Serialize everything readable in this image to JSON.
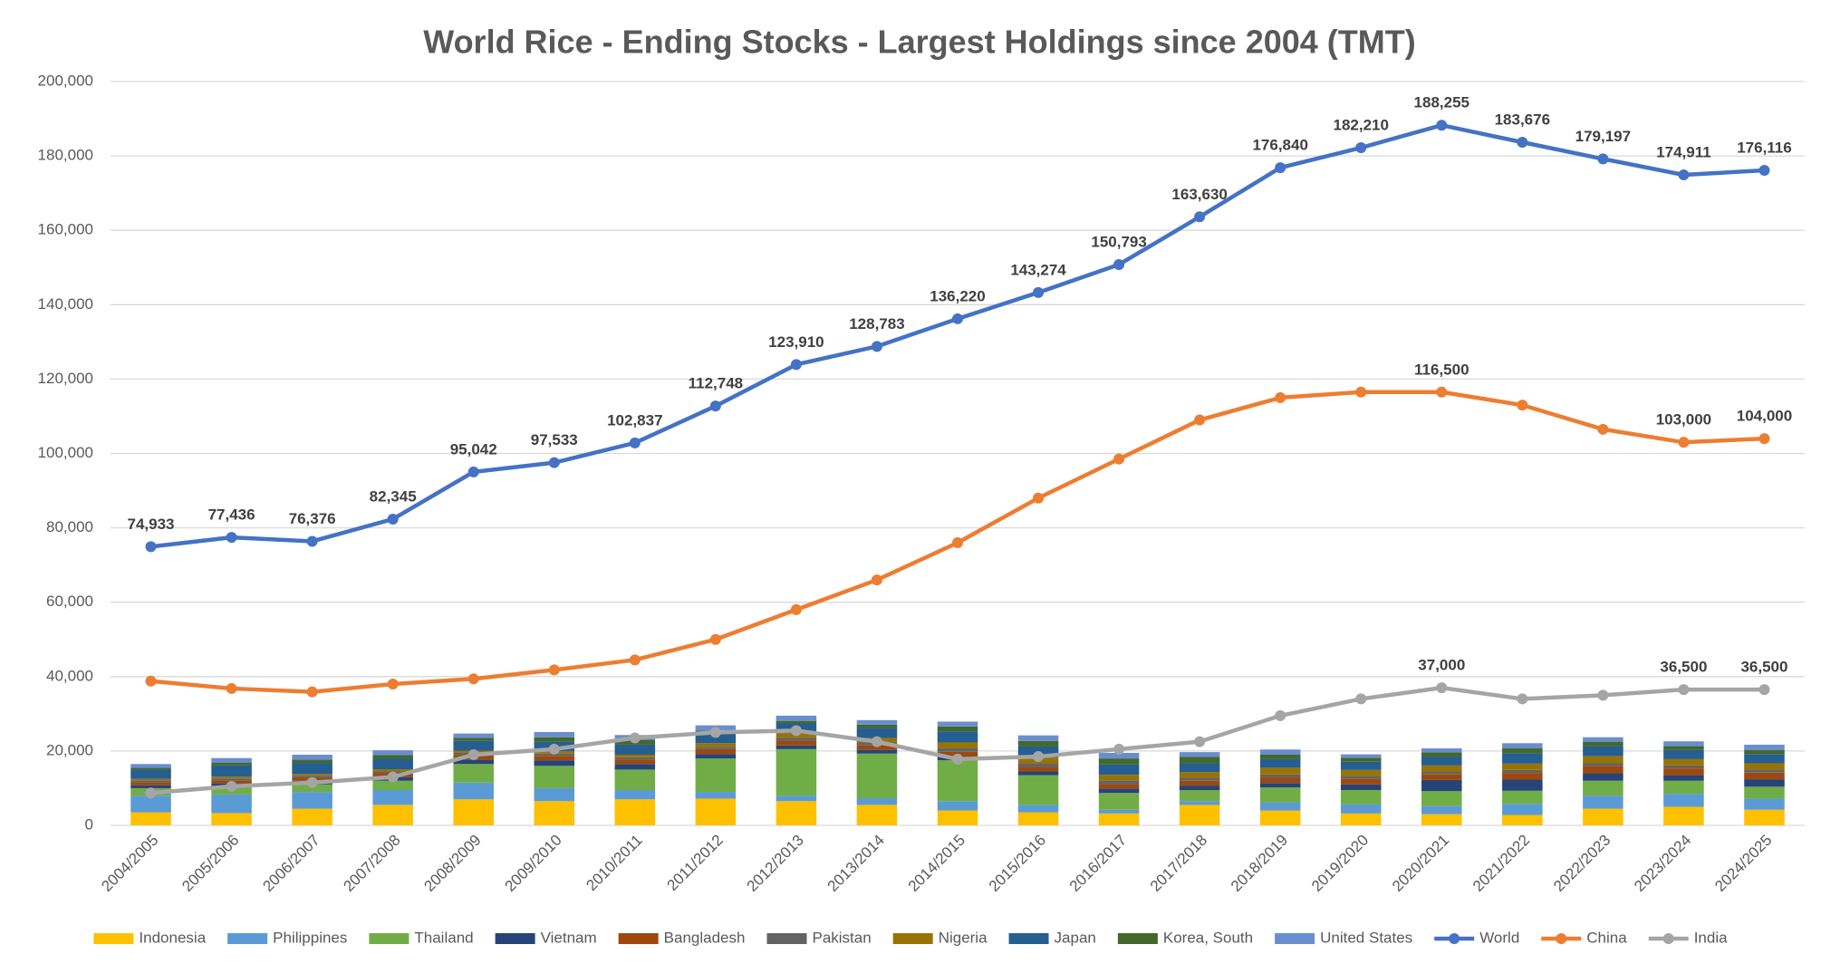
{
  "chart_data": {
    "type": "combo",
    "title": "World Rice - Ending Stocks - Largest Holdings since 2004 (TMT)",
    "categories": [
      "2004/2005",
      "2005/2006",
      "2006/2007",
      "2007/2008",
      "2008/2009",
      "2009/2010",
      "2010/2011",
      "2011/2012",
      "2012/2013",
      "2013/2014",
      "2014/2015",
      "2015/2016",
      "2016/2017",
      "2017/2018",
      "2018/2019",
      "2019/2020",
      "2020/2021",
      "2021/2022",
      "2022/2023",
      "2023/2024",
      "2024/2025"
    ],
    "ylim": [
      0,
      200000
    ],
    "yticks": [
      0,
      {
        "value": 20000,
        "label": "20,000"
      },
      {
        "value": 40000,
        "label": "40,000"
      },
      {
        "value": 60000,
        "label": "60,000"
      },
      {
        "value": 80000,
        "label": "80,000"
      },
      {
        "value": 100000,
        "label": "100,000"
      },
      {
        "value": 120000,
        "label": "120,000"
      },
      {
        "value": 140000,
        "label": "140,000"
      },
      {
        "value": 160000,
        "label": "160,000"
      },
      {
        "value": 180000,
        "label": "180,000"
      },
      {
        "value": 200000,
        "label": "200,000"
      }
    ],
    "grid": true,
    "legend": "bottom",
    "series": [
      {
        "name": "Indonesia",
        "type": "bar",
        "color": "#ffc000",
        "values": [
          3500,
          3300,
          4500,
          5500,
          7000,
          6500,
          7000,
          7200,
          6500,
          5500,
          4000,
          3500,
          3200,
          5500,
          4000,
          3200,
          3000,
          2800,
          4500,
          5000,
          4200
        ]
      },
      {
        "name": "Philippines",
        "type": "bar",
        "color": "#5b9bd5",
        "values": [
          4500,
          5000,
          4500,
          4000,
          4500,
          3500,
          2500,
          1800,
          1500,
          1800,
          2500,
          2000,
          1000,
          1000,
          2200,
          2500,
          2200,
          3000,
          3500,
          3500,
          3000
        ]
      },
      {
        "name": "Thailand",
        "type": "bar",
        "color": "#70ad47",
        "values": [
          2000,
          2000,
          2000,
          2500,
          5000,
          6000,
          5500,
          9000,
          12500,
          12000,
          11000,
          8000,
          4500,
          3000,
          4000,
          3800,
          4000,
          3500,
          4000,
          3500,
          3200
        ]
      },
      {
        "name": "Vietnam",
        "type": "bar",
        "color": "#264478",
        "values": [
          800,
          1000,
          1000,
          1000,
          1200,
          1500,
          1500,
          1200,
          1000,
          1000,
          1000,
          1000,
          1200,
          1200,
          1200,
          1500,
          3000,
          3000,
          2000,
          1500,
          2000
        ]
      },
      {
        "name": "Bangladesh",
        "type": "bar",
        "color": "#9e480e",
        "values": [
          800,
          800,
          800,
          1000,
          1200,
          1200,
          1200,
          1300,
          1300,
          1200,
          1300,
          1200,
          1200,
          1300,
          1500,
          1500,
          1500,
          1800,
          2000,
          1800,
          1800
        ]
      },
      {
        "name": "Pakistan",
        "type": "bar",
        "color": "#636363",
        "values": [
          500,
          500,
          500,
          500,
          600,
          600,
          600,
          600,
          800,
          800,
          1000,
          1000,
          1000,
          800,
          800,
          800,
          800,
          800,
          800,
          800,
          800
        ]
      },
      {
        "name": "Nigeria",
        "type": "bar",
        "color": "#997300",
        "values": [
          400,
          500,
          500,
          600,
          600,
          600,
          700,
          1000,
          1200,
          1200,
          1500,
          1500,
          1500,
          1500,
          1800,
          1600,
          1600,
          1700,
          1800,
          1700,
          1700
        ]
      },
      {
        "name": "Japan",
        "type": "bar",
        "color": "#255e91",
        "values": [
          2500,
          3000,
          3000,
          2800,
          2600,
          2600,
          2700,
          2600,
          2600,
          2700,
          3000,
          3000,
          2800,
          2400,
          2300,
          2200,
          2300,
          2800,
          2700,
          2500,
          2500
        ]
      },
      {
        "name": "Korea, South",
        "type": "bar",
        "color": "#43682b",
        "values": [
          500,
          800,
          900,
          1000,
          800,
          1200,
          1300,
          800,
          700,
          900,
          1300,
          1500,
          1600,
          1700,
          1200,
          1100,
          1200,
          1300,
          1200,
          1000,
          1100
        ]
      },
      {
        "name": "United States",
        "type": "bar",
        "color": "#698ed0",
        "values": [
          1000,
          1200,
          1300,
          1300,
          1200,
          1400,
          1300,
          1400,
          1400,
          1200,
          1300,
          1500,
          1500,
          1300,
          1400,
          900,
          1100,
          1400,
          1200,
          1300,
          1400
        ]
      },
      {
        "name": "World",
        "type": "line",
        "color": "#4472c4",
        "values": [
          74933,
          77436,
          76376,
          82345,
          95042,
          97533,
          102837,
          112748,
          123910,
          128783,
          136220,
          143274,
          150793,
          163630,
          176840,
          182210,
          188255,
          183676,
          179197,
          174911,
          176116
        ],
        "value_labels": [
          "74,933",
          "77,436",
          "76,376",
          "82,345",
          "95,042",
          "97,533",
          "102,837",
          "112,748",
          "123,910",
          "128,783",
          "136,220",
          "143,274",
          "150,793",
          "163,630",
          "176,840",
          "182,210",
          "188,255",
          "183,676",
          "179,197",
          "174,911",
          "176,116"
        ]
      },
      {
        "name": "China",
        "type": "line",
        "color": "#ed7d31",
        "values": [
          38800,
          36800,
          35900,
          38000,
          39400,
          41800,
          44500,
          50000,
          58000,
          66000,
          76000,
          88000,
          98500,
          109000,
          115000,
          116500,
          116500,
          113000,
          106500,
          103000,
          104000
        ],
        "value_labels": [
          null,
          null,
          null,
          null,
          null,
          null,
          null,
          null,
          null,
          null,
          null,
          null,
          null,
          null,
          null,
          null,
          "116,500",
          null,
          null,
          "103,000",
          "104,000"
        ]
      },
      {
        "name": "India",
        "type": "line",
        "color": "#a5a5a5",
        "values": [
          8700,
          10500,
          11500,
          13000,
          19000,
          20500,
          23500,
          25000,
          25500,
          22500,
          17800,
          18500,
          20500,
          22500,
          29500,
          34000,
          37000,
          34000,
          35000,
          36500,
          36500
        ],
        "value_labels": [
          null,
          null,
          null,
          null,
          null,
          null,
          null,
          null,
          null,
          null,
          null,
          null,
          null,
          null,
          null,
          null,
          "37,000",
          null,
          null,
          "36,500",
          "36,500"
        ]
      }
    ]
  }
}
